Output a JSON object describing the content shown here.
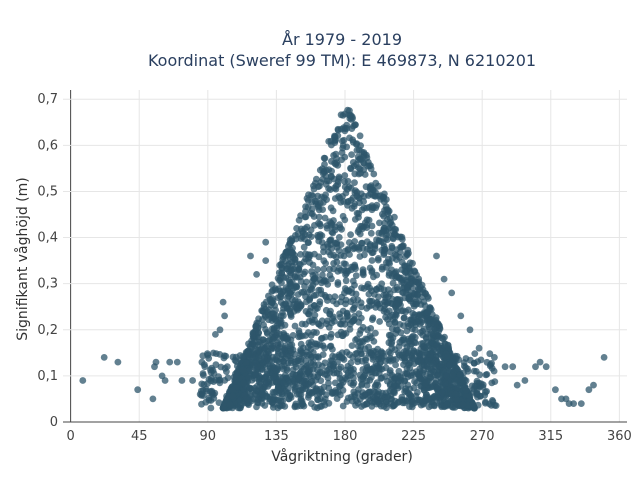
{
  "chart_data": {
    "type": "scatter",
    "title": [
      "År 1979 - 2019",
      "Koordinat (Sweref 99 TM): E 469873, N 6210201"
    ],
    "xlabel": "Vågriktning (grader)",
    "ylabel": "Signifikant våghöjd (m)",
    "xlim": [
      -5,
      365
    ],
    "ylim": [
      0,
      0.72
    ],
    "xticks": [
      0,
      45,
      90,
      135,
      180,
      225,
      270,
      315,
      360
    ],
    "xtick_labels": [
      "0",
      "45",
      "90",
      "135",
      "180",
      "225",
      "270",
      "315",
      "360"
    ],
    "yticks": [
      0,
      0.1,
      0.2,
      0.3,
      0.4,
      0.5,
      0.6,
      0.7
    ],
    "ytick_labels": [
      "0",
      "0,1",
      "0,2",
      "0,3",
      "0,4",
      "0,5",
      "0,6",
      "0,7"
    ],
    "grid": true,
    "marker_color": "#2e566b",
    "outlier_points": [
      [
        8,
        0.09
      ],
      [
        22,
        0.14
      ],
      [
        31,
        0.13
      ],
      [
        44,
        0.07
      ],
      [
        54,
        0.05
      ],
      [
        55,
        0.12
      ],
      [
        56,
        0.13
      ],
      [
        60,
        0.1
      ],
      [
        62,
        0.09
      ],
      [
        65,
        0.13
      ],
      [
        70,
        0.13
      ],
      [
        73,
        0.09
      ],
      [
        80,
        0.09
      ],
      [
        85,
        0.06
      ],
      [
        88,
        0.12
      ],
      [
        95,
        0.19
      ],
      [
        98,
        0.2
      ],
      [
        100,
        0.26
      ],
      [
        101,
        0.23
      ],
      [
        118,
        0.36
      ],
      [
        122,
        0.32
      ],
      [
        128,
        0.35
      ],
      [
        128,
        0.39
      ],
      [
        240,
        0.36
      ],
      [
        245,
        0.31
      ],
      [
        250,
        0.28
      ],
      [
        256,
        0.23
      ],
      [
        262,
        0.2
      ],
      [
        268,
        0.16
      ],
      [
        278,
        0.14
      ],
      [
        285,
        0.12
      ],
      [
        290,
        0.12
      ],
      [
        293,
        0.08
      ],
      [
        298,
        0.09
      ],
      [
        305,
        0.12
      ],
      [
        308,
        0.13
      ],
      [
        312,
        0.12
      ],
      [
        318,
        0.07
      ],
      [
        322,
        0.05
      ],
      [
        325,
        0.05
      ],
      [
        330,
        0.04
      ],
      [
        335,
        0.04
      ],
      [
        340,
        0.07
      ],
      [
        343,
        0.08
      ],
      [
        350,
        0.14
      ],
      [
        327,
        0.04
      ]
    ],
    "cloud": {
      "center_direction": 180,
      "peak_height": 0.7,
      "left_base_direction": 100,
      "right_base_direction": 265,
      "min_height": 0.03
    }
  }
}
